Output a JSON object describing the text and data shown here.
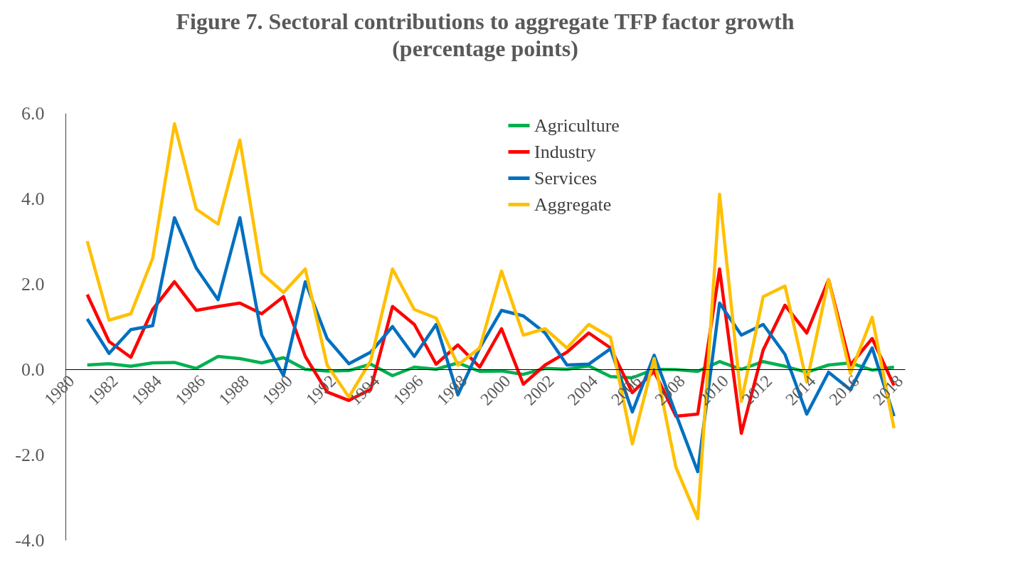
{
  "chart_data": {
    "type": "line",
    "title": [
      "Figure 7. Sectoral contributions to aggregate TFP factor growth",
      "(percentage points)"
    ],
    "x": [
      1981,
      1982,
      1983,
      1984,
      1985,
      1986,
      1987,
      1988,
      1989,
      1990,
      1991,
      1992,
      1993,
      1994,
      1995,
      1996,
      1997,
      1998,
      1999,
      2000,
      2001,
      2002,
      2003,
      2004,
      2005,
      2006,
      2007,
      2008,
      2009,
      2010,
      2011,
      2012,
      2013,
      2014,
      2015,
      2016,
      2017,
      2018
    ],
    "series": [
      {
        "name": "Agriculture",
        "color": "#00b050",
        "values": [
          0.1,
          0.13,
          0.07,
          0.15,
          0.16,
          0.02,
          0.3,
          0.25,
          0.15,
          0.27,
          0.0,
          -0.04,
          -0.03,
          0.12,
          -0.15,
          0.05,
          0.0,
          0.15,
          -0.05,
          -0.04,
          -0.12,
          0.02,
          0.0,
          0.08,
          -0.17,
          -0.2,
          0.0,
          -0.01,
          -0.05,
          0.18,
          0.0,
          0.18,
          0.07,
          -0.07,
          0.1,
          0.15,
          -0.02,
          0.05
        ]
      },
      {
        "name": "Industry",
        "color": "#ff0000",
        "values": [
          1.75,
          0.65,
          0.28,
          1.4,
          2.05,
          1.38,
          1.47,
          1.55,
          1.3,
          1.7,
          0.3,
          -0.53,
          -0.73,
          -0.47,
          1.47,
          1.05,
          0.12,
          0.57,
          0.05,
          0.95,
          -0.35,
          0.1,
          0.4,
          0.85,
          0.5,
          -0.55,
          -0.05,
          -1.1,
          -1.05,
          2.35,
          -1.5,
          0.45,
          1.5,
          0.85,
          2.1,
          0.1,
          0.72,
          -0.38
        ]
      },
      {
        "name": "Services",
        "color": "#0070c0",
        "values": [
          1.18,
          0.37,
          0.93,
          1.02,
          3.55,
          2.37,
          1.63,
          3.55,
          0.8,
          -0.15,
          2.05,
          0.72,
          0.13,
          0.4,
          1.0,
          0.3,
          1.05,
          -0.6,
          0.5,
          1.38,
          1.25,
          0.85,
          0.1,
          0.12,
          0.48,
          -1.0,
          0.33,
          -1.05,
          -2.4,
          1.55,
          0.8,
          1.05,
          0.35,
          -1.05,
          -0.07,
          -0.48,
          0.5,
          -1.1
        ]
      },
      {
        "name": "Aggregate",
        "color": "#ffc000",
        "values": [
          3.0,
          1.15,
          1.3,
          2.6,
          5.75,
          3.75,
          3.4,
          5.37,
          2.25,
          1.8,
          2.35,
          0.1,
          -0.65,
          0.2,
          2.35,
          1.4,
          1.2,
          0.1,
          0.5,
          2.3,
          0.8,
          0.95,
          0.5,
          1.05,
          0.75,
          -1.75,
          0.25,
          -2.3,
          -3.5,
          4.1,
          -0.75,
          1.7,
          1.95,
          -0.3,
          2.1,
          -0.1,
          1.22,
          -1.38
        ]
      }
    ],
    "xlim": [
      1980,
      2018.5
    ],
    "xticks": [
      1980,
      1982,
      1984,
      1986,
      1988,
      1990,
      1992,
      1994,
      1996,
      1998,
      2000,
      2002,
      2004,
      2006,
      2008,
      2010,
      2012,
      2014,
      2016,
      2018
    ],
    "ylim": [
      -4,
      6
    ],
    "yticks": [
      {
        "value": -4,
        "label": "-4.0"
      },
      {
        "value": -2,
        "label": "-2.0"
      },
      {
        "value": 0,
        "label": "0.0"
      },
      {
        "value": 2,
        "label": "2.0"
      },
      {
        "value": 4,
        "label": "4.0"
      },
      {
        "value": 6,
        "label": "6.0"
      }
    ],
    "grid": false,
    "legend": "top",
    "marker": "none",
    "line_style": "solid"
  }
}
